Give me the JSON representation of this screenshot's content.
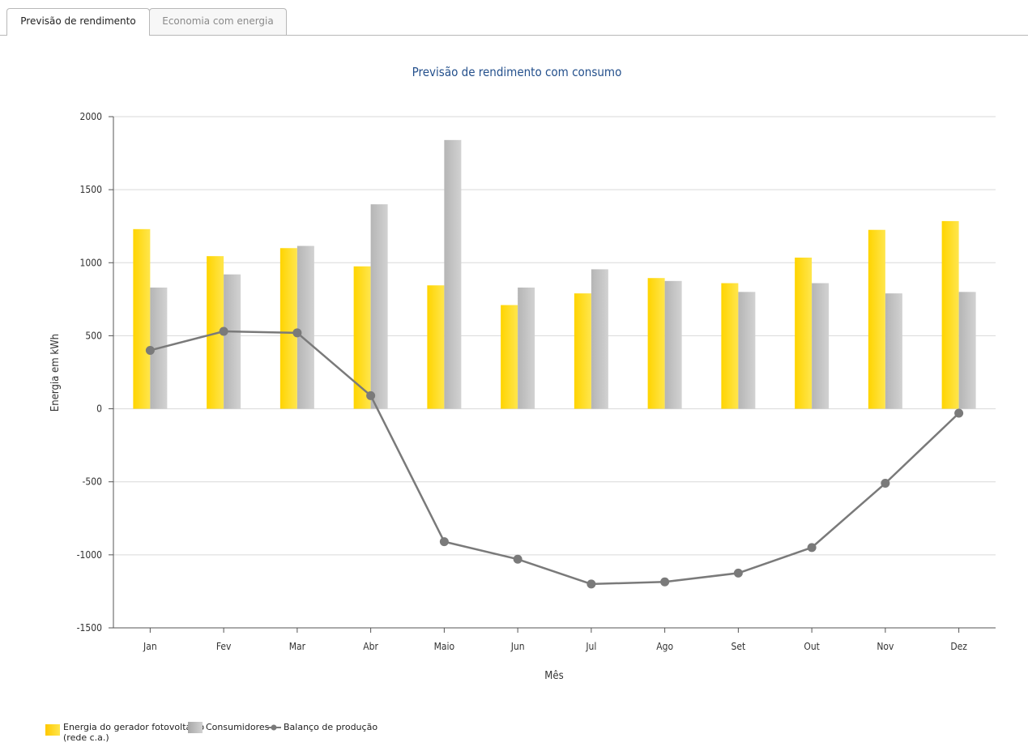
{
  "tabs": [
    {
      "label": "Previsão de rendimento",
      "active": true
    },
    {
      "label": "Economia com energia",
      "active": false
    }
  ],
  "colors": {
    "pv": "#ffd400",
    "pv_light": "#ffe64d",
    "consumers": "#b5b5b5",
    "consumers_light": "#d2d2d2",
    "balance": "#7a7a7a",
    "title": "#24508c",
    "grid": "#d9d9d9"
  },
  "chart_data": {
    "type": "bar",
    "title": "Previsão de rendimento com consumo",
    "xlabel": "Mês",
    "ylabel": "Energia em kWh",
    "ylim": [
      -1500,
      2000
    ],
    "yticks": [
      2000,
      1500,
      1000,
      500,
      0,
      -500,
      -1000,
      -1500
    ],
    "ytick_labels": [
      "2000",
      "1500",
      "1000",
      "500",
      "0",
      "-500",
      "-1000",
      "-1500"
    ],
    "grid": true,
    "legend_position": "bottom-left",
    "categories": [
      "Jan",
      "Fev",
      "Mar",
      "Abr",
      "Maio",
      "Jun",
      "Jul",
      "Ago",
      "Set",
      "Out",
      "Nov",
      "Dez"
    ],
    "series": [
      {
        "name": "Energia do gerador fotovoltaico (rede c.a.)",
        "type": "bar",
        "values": [
          1230,
          1045,
          1100,
          975,
          845,
          710,
          790,
          895,
          860,
          1035,
          1225,
          1285
        ]
      },
      {
        "name": "Consumidores",
        "type": "bar",
        "values": [
          830,
          920,
          1115,
          1400,
          1840,
          830,
          955,
          875,
          800,
          860,
          790,
          800
        ]
      },
      {
        "name": "Balanço de produção",
        "type": "line",
        "values": [
          400,
          530,
          520,
          90,
          -910,
          -1030,
          -1200,
          -1185,
          -1125,
          -950,
          -510,
          -30
        ]
      }
    ]
  },
  "legend": {
    "pv_line1": "Energia do gerador fotovoltaico",
    "pv_line2": "(rede c.a.)",
    "consumers": "Consumidores",
    "balance": "Balanço de produção"
  }
}
